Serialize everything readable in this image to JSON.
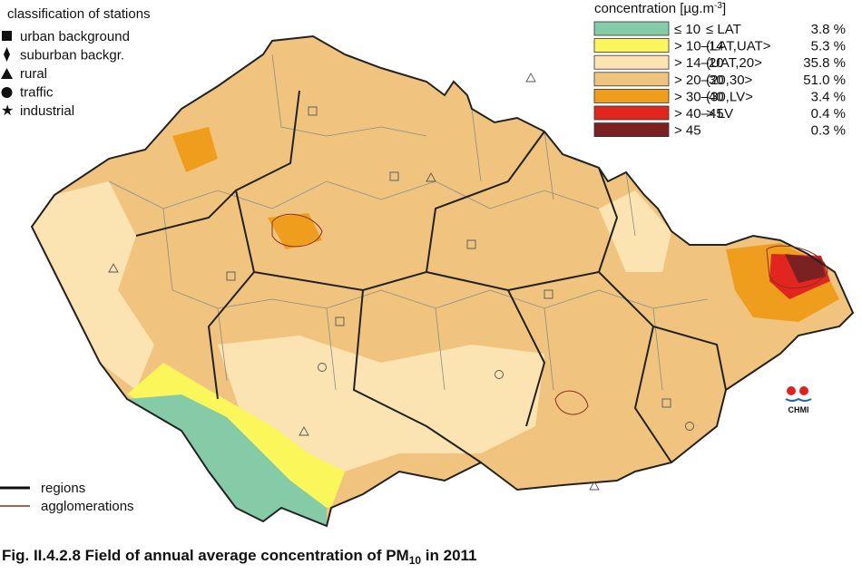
{
  "stations": {
    "title": "classification of stations",
    "types": [
      "urban background",
      "suburban backgr.",
      "rural",
      "traffic",
      "industrial"
    ]
  },
  "legend": {
    "title": {
      "text": "concentration [µg.m",
      "superscript": "-3",
      "suffix": "]"
    },
    "classes": [
      {
        "range": "≤ 10",
        "limit": "≤ LAT",
        "share": "3.8 %",
        "color": "#86cba8"
      },
      {
        "range": "> 10–14",
        "limit": "(LAT,UAT>",
        "share": "5.3 %",
        "color": "#fbf75a"
      },
      {
        "range": "> 14–20",
        "limit": "(UAT,20>",
        "share": "35.8 %",
        "color": "#fbe3b2"
      },
      {
        "range": "> 20–30",
        "limit": "(20,30>",
        "share": "51.0 %",
        "color": "#f0c47f"
      },
      {
        "range": "> 30–40",
        "limit": "(30,LV>",
        "share": "3.4 %",
        "color": "#ef9d1c"
      },
      {
        "range": "> 40–45",
        "limit": "> LV",
        "share": "0.4 %",
        "color": "#e0261e"
      },
      {
        "range": "> 45",
        "limit": "",
        "share": "0.3 %",
        "color": "#7b2121"
      }
    ]
  },
  "boundaries": [
    "regions",
    "agglomerations"
  ],
  "logo": "CHMI",
  "caption": {
    "text": "Fig. II.4.2.8  Field of annual average concentration of PM",
    "subscript": "10",
    "suffix": " in 2011"
  }
}
